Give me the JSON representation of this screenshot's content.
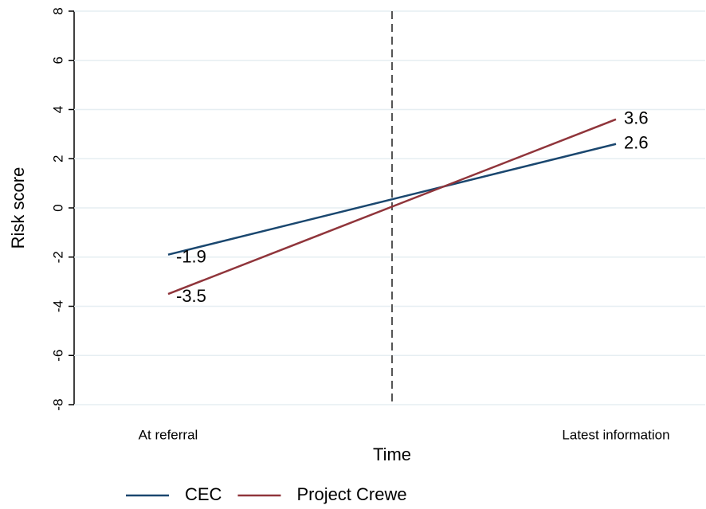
{
  "chart_data": {
    "type": "line",
    "x_label": "Time",
    "y_label": "Risk score",
    "categories": [
      "At referral",
      "Latest information"
    ],
    "series": [
      {
        "name": "CEC",
        "color": "#1a476f",
        "values": [
          -1.9,
          2.6
        ]
      },
      {
        "name": "Project Crewe",
        "color": "#90353b",
        "values": [
          -3.5,
          3.6
        ]
      }
    ],
    "ylim": [
      -8,
      8
    ],
    "yticks": [
      -8,
      -6,
      -4,
      -2,
      0,
      2,
      4,
      6,
      8
    ],
    "grid": true,
    "legend": "bottom"
  }
}
